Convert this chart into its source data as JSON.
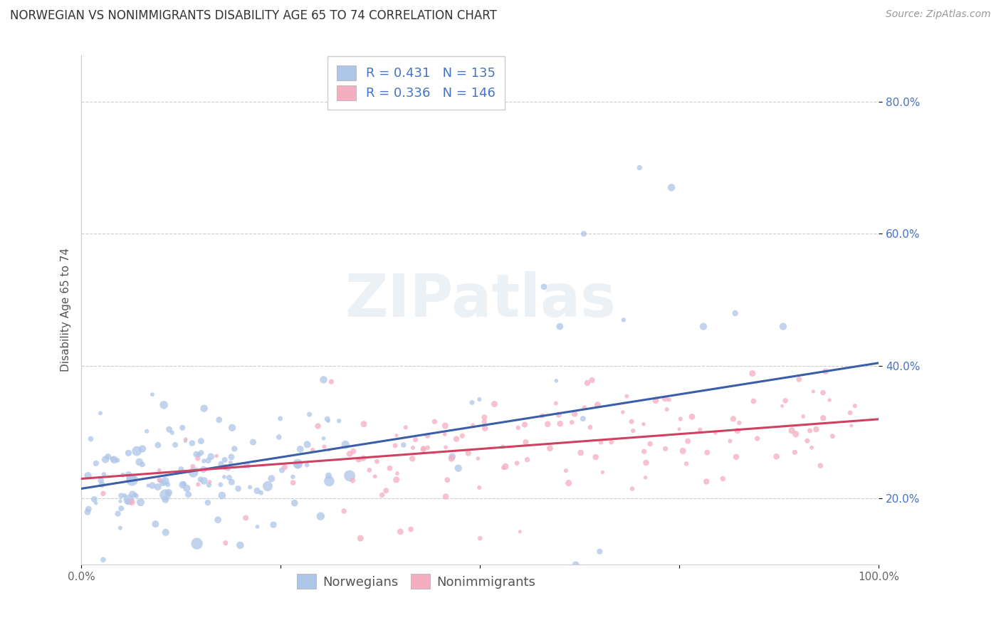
{
  "title": "NORWEGIAN VS NONIMMIGRANTS DISABILITY AGE 65 TO 74 CORRELATION CHART",
  "source": "Source: ZipAtlas.com",
  "ylabel": "Disability Age 65 to 74",
  "xlim": [
    0,
    1.0
  ],
  "ylim": [
    0.1,
    0.87
  ],
  "xticks": [
    0.0,
    0.25,
    0.5,
    0.75,
    1.0
  ],
  "xticklabels": [
    "0.0%",
    "",
    "",
    "",
    "100.0%"
  ],
  "yticks": [
    0.2,
    0.4,
    0.6,
    0.8
  ],
  "yticklabels": [
    "20.0%",
    "40.0%",
    "60.0%",
    "80.0%"
  ],
  "norwegian_color": "#aec6e8",
  "nonimmigrant_color": "#f4aec0",
  "norwegian_line_color": "#3a5fa8",
  "nonimmigrant_line_color": "#d04060",
  "legend_text_color": "#4472c4",
  "R_norwegian": 0.431,
  "N_norwegian": 135,
  "R_nonimmigrant": 0.336,
  "N_nonimmigrant": 146,
  "watermark": "ZIPatlas",
  "background_color": "#ffffff",
  "grid_color": "#c0c0c0",
  "title_fontsize": 12,
  "axis_label_fontsize": 11,
  "tick_fontsize": 11,
  "legend_fontsize": 13,
  "source_fontsize": 10,
  "norw_line_start_y": 0.215,
  "norw_line_end_y": 0.405,
  "nonimm_line_start_y": 0.23,
  "nonimm_line_end_y": 0.32
}
